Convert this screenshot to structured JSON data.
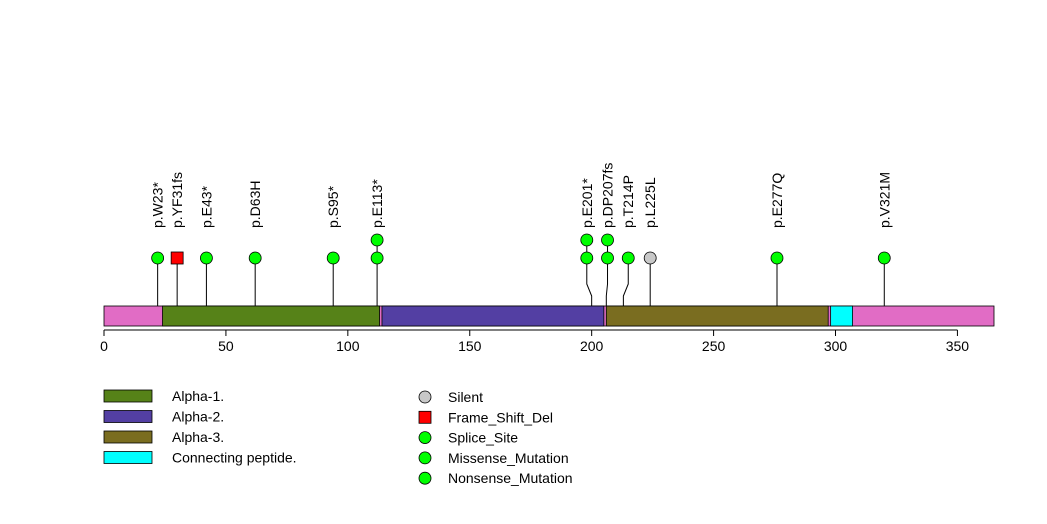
{
  "chart_data": {
    "type": "lollipop",
    "title": "",
    "xlabel": "",
    "ylabel": "",
    "xlim": [
      0,
      365
    ],
    "x_ticks": [
      0,
      50,
      100,
      150,
      200,
      250,
      300,
      350
    ],
    "protein_length": 365,
    "domains": [
      {
        "name": "Alpha-1.",
        "start": 24,
        "end": 113,
        "color": "#568218"
      },
      {
        "name": "Alpha-2.",
        "start": 114,
        "end": 205,
        "color": "#533FA3"
      },
      {
        "name": "Alpha-3.",
        "start": 206,
        "end": 297,
        "color": "#7A6D20"
      },
      {
        "name": "Connecting peptide.",
        "start": 298,
        "end": 307,
        "color": "#00FFFF"
      }
    ],
    "background_color": "#E16CC5",
    "mutations": [
      {
        "label": "p.W23*",
        "pos": 22,
        "shown_pos": 22,
        "count": 1,
        "type": "Nonsense_Mutation"
      },
      {
        "label": "p.YF31fs",
        "pos": 30,
        "shown_pos": 30,
        "count": 1,
        "type": "Frame_Shift_Del"
      },
      {
        "label": "p.E43*",
        "pos": 42,
        "shown_pos": 42,
        "count": 1,
        "type": "Nonsense_Mutation"
      },
      {
        "label": "p.D63H",
        "pos": 62,
        "shown_pos": 62,
        "count": 1,
        "type": "Missense_Mutation"
      },
      {
        "label": "p.S95*",
        "pos": 94,
        "shown_pos": 94,
        "count": 1,
        "type": "Nonsense_Mutation"
      },
      {
        "label": "p.E113*",
        "pos": 112,
        "shown_pos": 112,
        "count": 2,
        "type": "Nonsense_Mutation"
      },
      {
        "label": "p.E201*",
        "pos": 200,
        "shown_pos": 198,
        "count": 2,
        "type": "Nonsense_Mutation"
      },
      {
        "label": "p.DP207fs",
        "pos": 206,
        "shown_pos": 206.5,
        "count": 2,
        "type": "Splice_Site"
      },
      {
        "label": "p.T214P",
        "pos": 213,
        "shown_pos": 215,
        "count": 1,
        "type": "Missense_Mutation"
      },
      {
        "label": "p.L225L",
        "pos": 224,
        "shown_pos": 224,
        "count": 1,
        "type": "Silent"
      },
      {
        "label": "p.E277Q",
        "pos": 276,
        "shown_pos": 276,
        "count": 1,
        "type": "Missense_Mutation"
      },
      {
        "label": "p.V321M",
        "pos": 320,
        "shown_pos": 320,
        "count": 1,
        "type": "Missense_Mutation"
      }
    ],
    "mutation_legend": [
      {
        "name": "Silent",
        "shape": "circle",
        "color": "#C8C8C8"
      },
      {
        "name": "Frame_Shift_Del",
        "shape": "square",
        "color": "#FF0000"
      },
      {
        "name": "Splice_Site",
        "shape": "circle",
        "color": "#00FF00"
      },
      {
        "name": "Missense_Mutation",
        "shape": "circle",
        "color": "#00FF00"
      },
      {
        "name": "Nonsense_Mutation",
        "shape": "circle",
        "color": "#00FF00"
      }
    ]
  }
}
